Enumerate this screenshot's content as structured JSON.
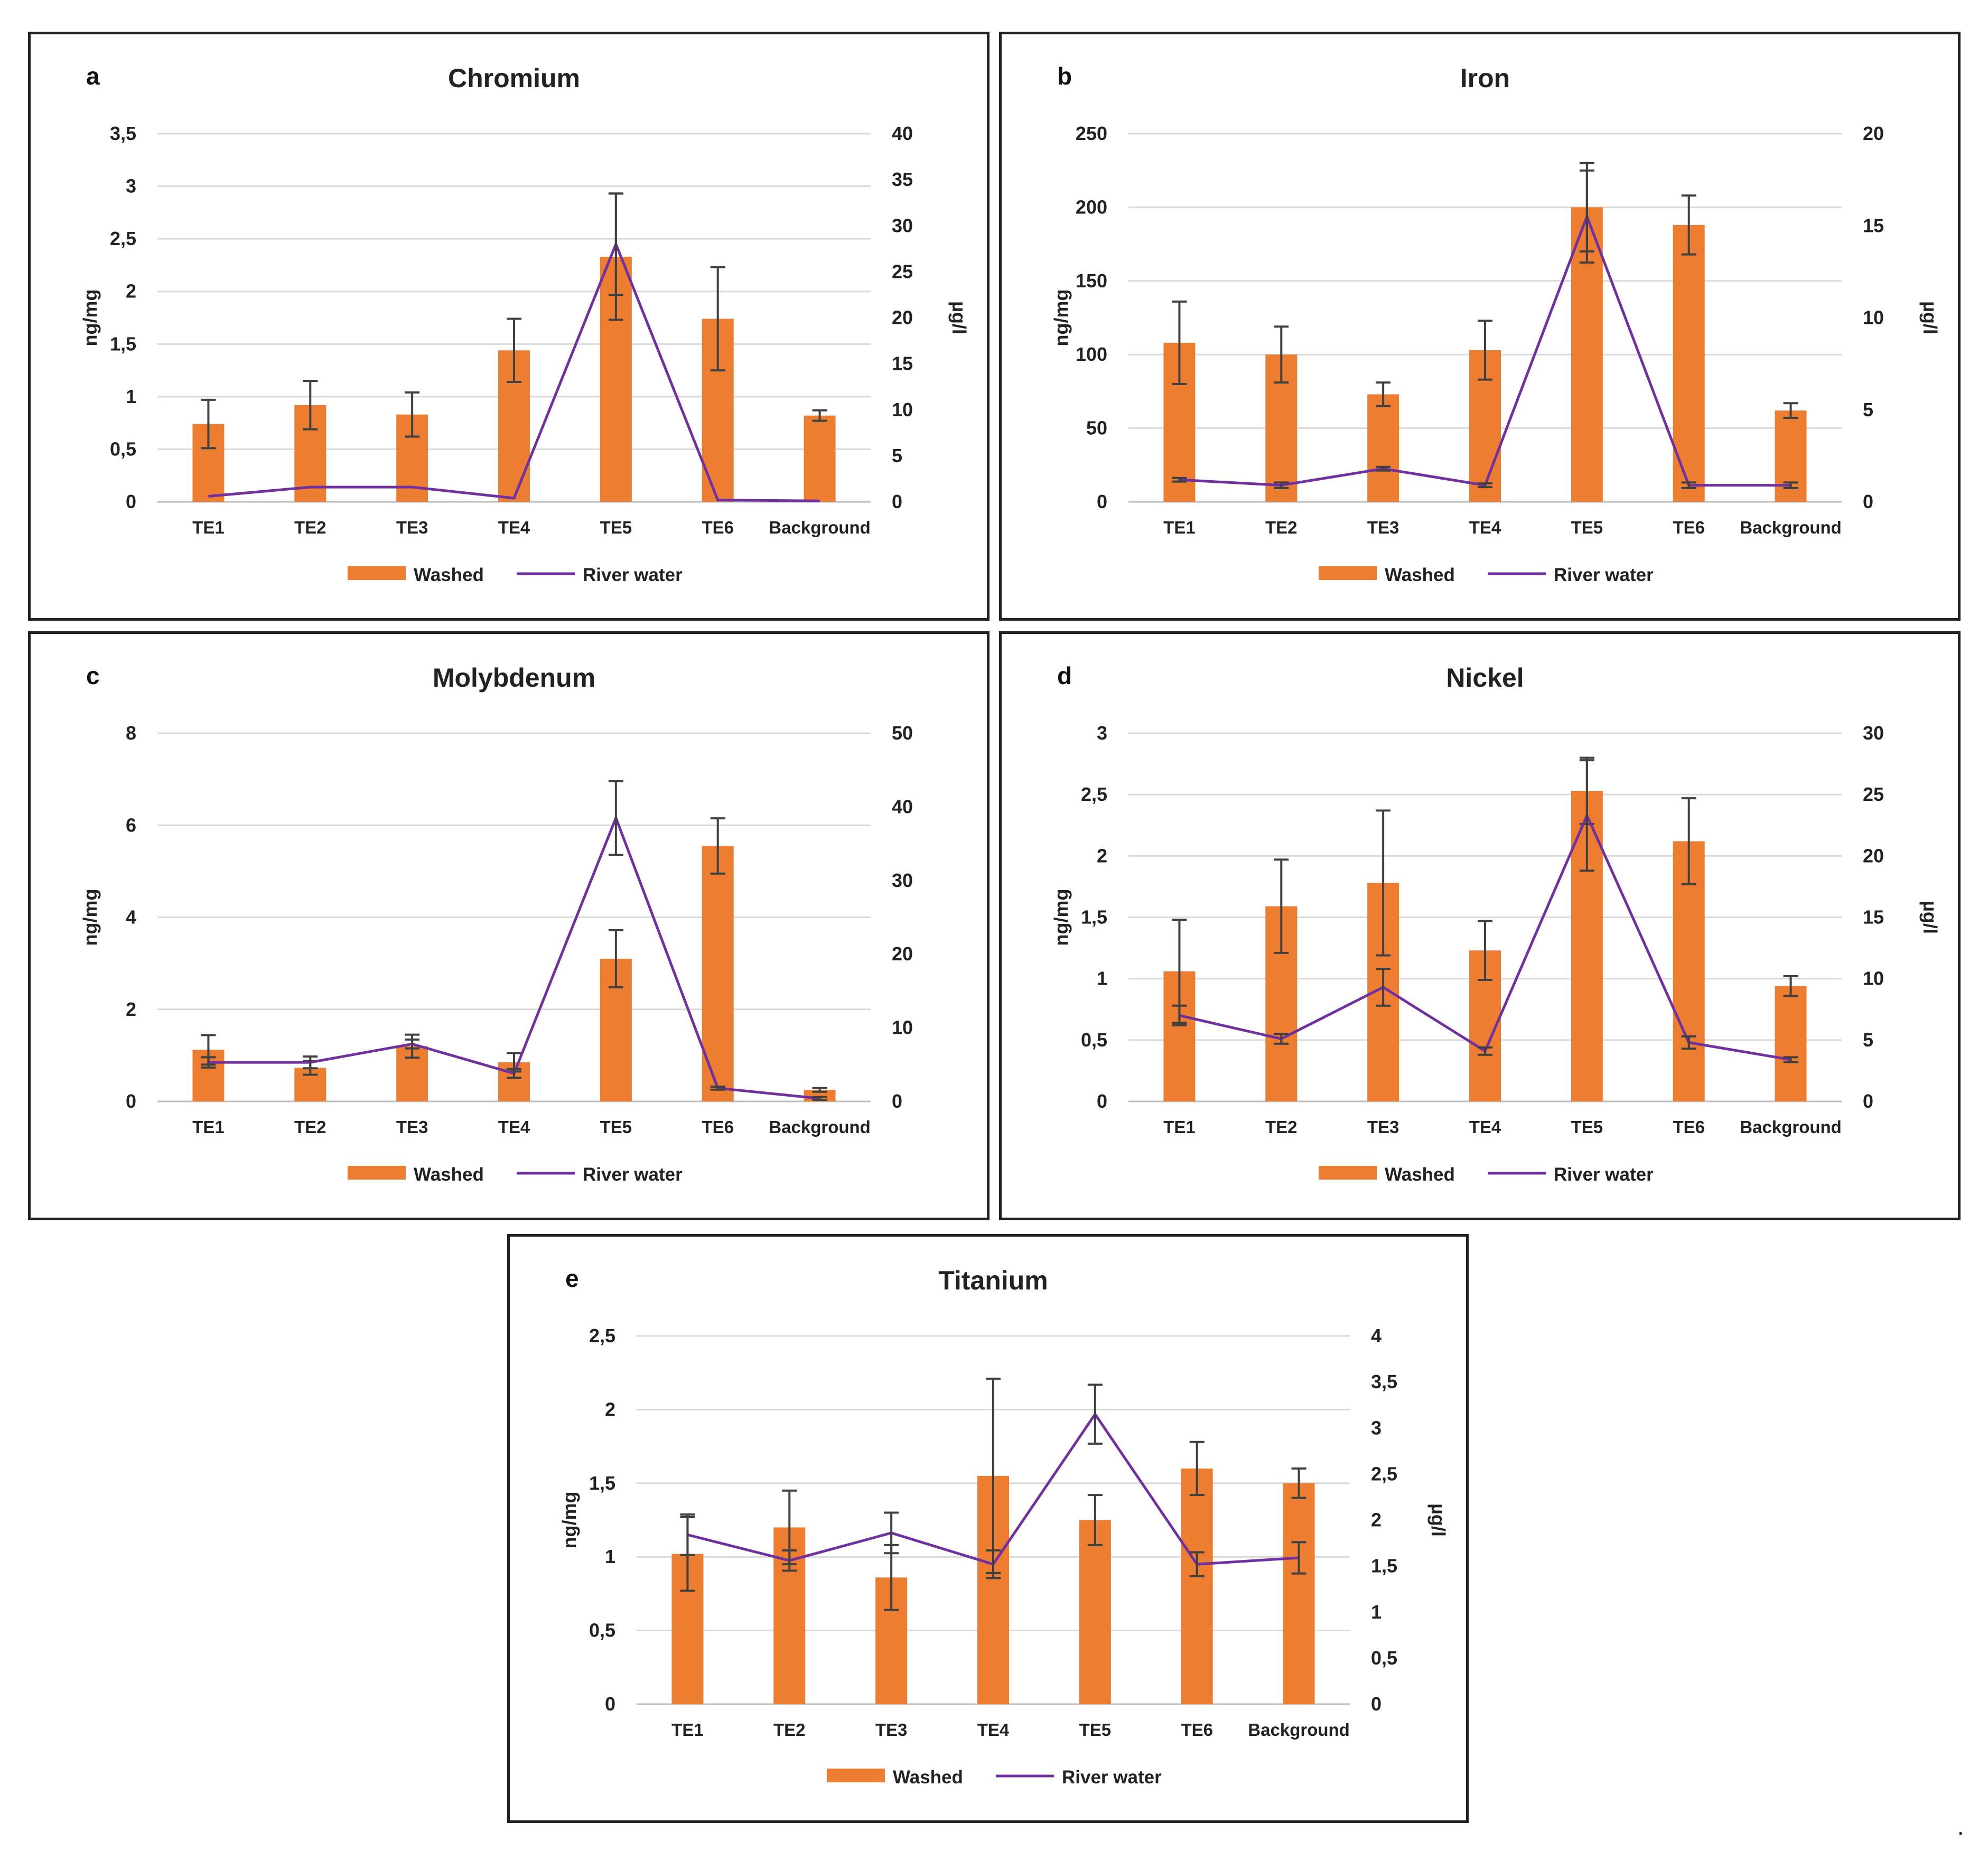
{
  "chart_data": [
    {
      "id": "a",
      "type": "bar",
      "letter": "a",
      "title": "Chromium",
      "categories": [
        "TE1",
        "TE2",
        "TE3",
        "TE4",
        "TE5",
        "TE6",
        "Background"
      ],
      "ylabel": "ng/mg",
      "y2label": "µg/l",
      "ylim": [
        0,
        3.5
      ],
      "yticks": [
        "0",
        "0,5",
        "1",
        "1,5",
        "2",
        "2,5",
        "3",
        "3,5"
      ],
      "y2lim": [
        0,
        40
      ],
      "y2ticks": [
        "0",
        "5",
        "10",
        "15",
        "20",
        "25",
        "30",
        "35",
        "40"
      ],
      "series": [
        {
          "name": "Washed",
          "type": "bar",
          "color": "#ED7D31",
          "axis": "left",
          "values": [
            0.74,
            0.92,
            0.83,
            1.44,
            2.33,
            1.74,
            0.82
          ],
          "errors": [
            0.23,
            0.23,
            0.21,
            0.3,
            0.6,
            0.49,
            0.05
          ]
        },
        {
          "name": "River water",
          "type": "line",
          "color": "#7030A0",
          "axis": "right",
          "values": [
            0.6,
            1.6,
            1.6,
            0.4,
            28.0,
            0.2,
            0.1
          ],
          "errors": [
            0,
            0,
            0,
            0,
            5.5,
            0,
            0
          ]
        }
      ],
      "legend": [
        "Washed",
        "River water"
      ]
    },
    {
      "id": "b",
      "type": "bar",
      "letter": "b",
      "title": "Iron",
      "categories": [
        "TE1",
        "TE2",
        "TE3",
        "TE4",
        "TE5",
        "TE6",
        "Background"
      ],
      "ylabel": "ng/mg",
      "y2label": "µg/l",
      "ylim": [
        0,
        250
      ],
      "yticks": [
        "0",
        "50",
        "100",
        "150",
        "200",
        "250"
      ],
      "y2lim": [
        0,
        20
      ],
      "y2ticks": [
        "0",
        "5",
        "10",
        "15",
        "20"
      ],
      "series": [
        {
          "name": "Washed",
          "type": "bar",
          "color": "#ED7D31",
          "axis": "left",
          "values": [
            108,
            100,
            73,
            103,
            200,
            188,
            62
          ],
          "errors": [
            28,
            19,
            8,
            20,
            30,
            20,
            5
          ]
        },
        {
          "name": "River water",
          "type": "line",
          "color": "#7030A0",
          "axis": "right",
          "values": [
            1.2,
            0.9,
            1.8,
            0.9,
            15.5,
            0.9,
            0.9
          ],
          "errors": [
            0.1,
            0.15,
            0.1,
            0.1,
            2.5,
            0.15,
            0.15
          ]
        }
      ],
      "legend": [
        "Washed",
        "River water"
      ]
    },
    {
      "id": "c",
      "type": "bar",
      "letter": "c",
      "title": "Molybdenum",
      "categories": [
        "TE1",
        "TE2",
        "TE3",
        "TE4",
        "TE5",
        "TE6",
        "Background"
      ],
      "ylabel": "ng/mg",
      "y2label": "",
      "ylim": [
        0,
        8
      ],
      "yticks": [
        "0",
        "2",
        "4",
        "6",
        "8"
      ],
      "y2lim": [
        0,
        50
      ],
      "y2ticks": [
        "0",
        "10",
        "20",
        "30",
        "40",
        "50"
      ],
      "series": [
        {
          "name": "Washed",
          "type": "bar",
          "color": "#ED7D31",
          "axis": "left",
          "values": [
            1.12,
            0.73,
            1.2,
            0.85,
            3.1,
            5.55,
            0.25
          ],
          "errors": [
            0.32,
            0.15,
            0.25,
            0.2,
            0.62,
            0.6,
            0.04
          ]
        },
        {
          "name": "River water",
          "type": "line",
          "color": "#7030A0",
          "axis": "right",
          "values": [
            5.3,
            5.3,
            7.8,
            3.8,
            38.5,
            1.8,
            0.4
          ],
          "errors": [
            0.7,
            0.8,
            0.6,
            0.6,
            5.0,
            0.2,
            0.2
          ]
        }
      ],
      "legend": [
        "Washed",
        "River water"
      ]
    },
    {
      "id": "d",
      "type": "bar",
      "letter": "d",
      "title": "Nickel",
      "categories": [
        "TE1",
        "TE2",
        "TE3",
        "TE4",
        "TE5",
        "TE6",
        "Background"
      ],
      "ylabel": "ng/mg",
      "y2label": "µg/l",
      "ylim": [
        0,
        3
      ],
      "yticks": [
        "0",
        "0,5",
        "1",
        "1,5",
        "2",
        "2,5",
        "3"
      ],
      "y2lim": [
        0,
        30
      ],
      "y2ticks": [
        "0",
        "5",
        "10",
        "15",
        "20",
        "25",
        "30"
      ],
      "series": [
        {
          "name": "Washed",
          "type": "bar",
          "color": "#ED7D31",
          "axis": "left",
          "values": [
            1.06,
            1.59,
            1.78,
            1.23,
            2.53,
            2.12,
            0.94
          ],
          "errors": [
            0.42,
            0.38,
            0.59,
            0.24,
            0.27,
            0.35,
            0.08
          ]
        },
        {
          "name": "River water",
          "type": "line",
          "color": "#7030A0",
          "axis": "right",
          "values": [
            7.0,
            5.1,
            9.3,
            4.1,
            23.3,
            4.8,
            3.4
          ],
          "errors": [
            0.8,
            0.4,
            1.5,
            0.3,
            4.5,
            0.5,
            0.2
          ]
        }
      ],
      "legend": [
        "Washed",
        "River water"
      ]
    },
    {
      "id": "e",
      "type": "bar",
      "letter": "e",
      "title": "Titanium",
      "categories": [
        "TE1",
        "TE2",
        "TE3",
        "TE4",
        "TE5",
        "TE6",
        "Background"
      ],
      "ylabel": "ng/mg",
      "y2label": "µg/l",
      "ylim": [
        0,
        2.5
      ],
      "yticks": [
        "0",
        "0,5",
        "1",
        "1,5",
        "2",
        "2,5"
      ],
      "y2lim": [
        0,
        4
      ],
      "y2ticks": [
        "0",
        "0,5",
        "1",
        "1,5",
        "2",
        "2,5",
        "3",
        "3,5",
        "4"
      ],
      "series": [
        {
          "name": "Washed",
          "type": "bar",
          "color": "#ED7D31",
          "axis": "left",
          "values": [
            1.02,
            1.2,
            0.86,
            1.55,
            1.25,
            1.6,
            1.5
          ],
          "errors": [
            0.25,
            0.25,
            0.22,
            0.66,
            0.17,
            0.18,
            0.1
          ]
        },
        {
          "name": "River water",
          "type": "line",
          "color": "#7030A0",
          "axis": "right",
          "values": [
            1.84,
            1.56,
            1.86,
            1.52,
            3.15,
            1.52,
            1.59
          ],
          "errors": [
            0.22,
            0.11,
            0.22,
            0.15,
            0.32,
            0.13,
            0.17
          ]
        }
      ],
      "legend": [
        "Washed",
        "River water"
      ]
    }
  ],
  "trailing_mark": "."
}
